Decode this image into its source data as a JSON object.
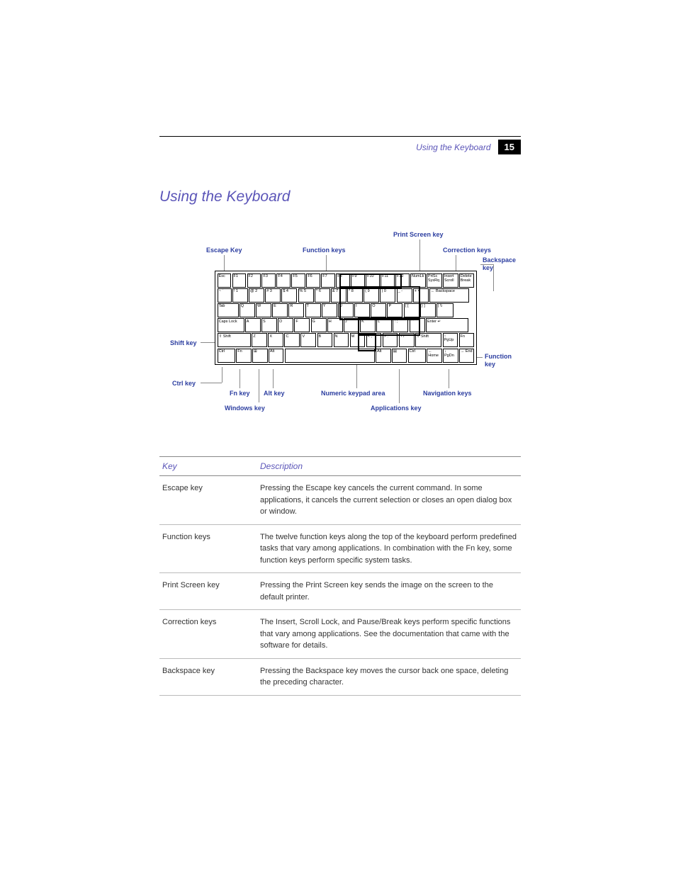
{
  "header": {
    "section": "Using the Keyboard",
    "pageno": "15"
  },
  "title": "Using the Keyboard",
  "labels": {
    "escape": "Escape Key",
    "function": "Function keys",
    "prtsc": "Print Screen key",
    "correction": "Correction keys",
    "backspace1": "Backspace",
    "backspace2": "key",
    "shift": "Shift key",
    "ctrl": "Ctrl key",
    "fn": "Fn key",
    "alt": "Alt key",
    "windows": "Windows key",
    "numpad": "Numeric keypad area",
    "apps": "Applications key",
    "nav": "Navigation keys",
    "funckey1": "Function",
    "funckey2": "key"
  },
  "table": {
    "h1": "Key",
    "h2": "Description",
    "rows": [
      {
        "k": "Escape key",
        "d": "Pressing the Escape key cancels the current command. In some applications, it cancels the current selection or closes an open dialog box or window."
      },
      {
        "k": "Function keys",
        "d": "The twelve function keys along the top of the keyboard perform predefined tasks that vary among applications. In combination with the Fn key, some function keys perform specific system tasks."
      },
      {
        "k": "Print Screen key",
        "d": "Pressing the Print Screen key sends the image on the screen to the default printer."
      },
      {
        "k": "Correction keys",
        "d": "The Insert, Scroll Lock, and Pause/Break keys perform specific functions that vary among applications. See the documentation that came with the software for details."
      },
      {
        "k": "Backspace key",
        "d": "Pressing the Backspace key moves the cursor back one space, deleting the preceding character."
      }
    ]
  },
  "keys": {
    "row1": [
      "Esc",
      "F1",
      "F2",
      "F3",
      "F4",
      "F5",
      "F6",
      "F7",
      "F8",
      "F9",
      "F10",
      "F11",
      "F12",
      "NumLk",
      "PrtSc SysRq",
      "Insert Scroll",
      "Delete Break"
    ],
    "row2": [
      "~ `",
      "! 1",
      "@ 2",
      "# 3",
      "$ 4",
      "% 5",
      "^ 6",
      "& 7",
      "* 8",
      "( 9",
      ") 0",
      "_ -",
      "+ =",
      "← Backspace"
    ],
    "row3": [
      "Tab",
      "Q",
      "W",
      "E",
      "R",
      "T",
      "Y",
      "U",
      "I",
      "O",
      "P",
      "{ [",
      "} ]",
      "| \\\\"
    ],
    "row4": [
      "Caps Lock",
      "A",
      "S",
      "D",
      "F",
      "G",
      "H",
      "J",
      "K",
      "L",
      ": ;",
      "\" '",
      "Enter ↵"
    ],
    "row5": [
      "⇧ Shift",
      "Z",
      "X",
      "C",
      "V",
      "B",
      "N",
      "M",
      "< ,",
      "> .",
      "? /",
      "⇧ Shift",
      "↑ PgUp",
      "Fn"
    ],
    "row6": [
      "Ctrl",
      "Fn",
      "⊞",
      "Alt",
      " ",
      "Alt",
      "▤",
      "Ctrl",
      "← Home",
      "↓ PgDn",
      "→ End"
    ]
  },
  "colors": {
    "label": "#2c3ea0",
    "heading": "#5b55b8",
    "line": "#888888"
  }
}
